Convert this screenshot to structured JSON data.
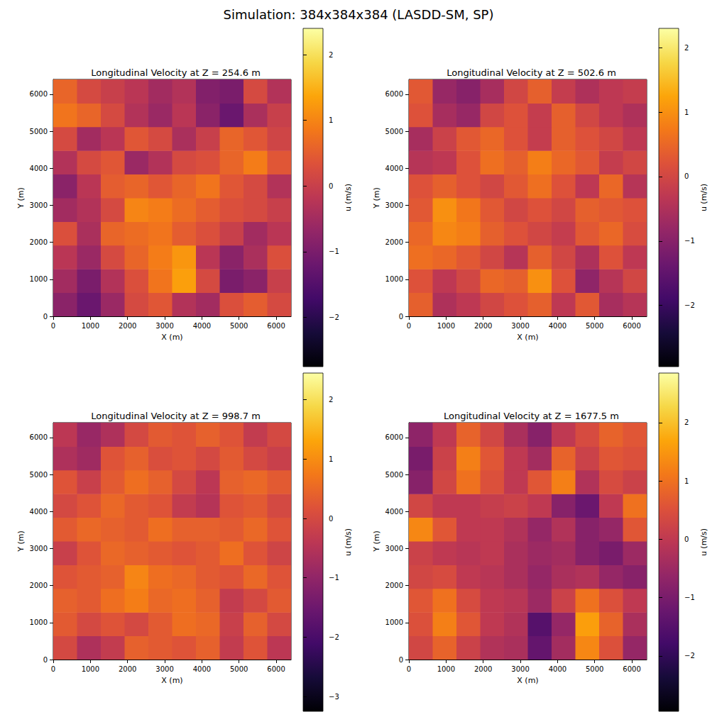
{
  "title": "Simulation: 384x384x384 (LASDD-SM, SP)",
  "chart_data": [
    {
      "type": "heatmap",
      "title": "Longitudinal Velocity at Z = 254.6 m",
      "x_label": "X (m)",
      "y_label": "Y (m)",
      "xlim": [
        0,
        6400
      ],
      "ylim": [
        0,
        6400
      ],
      "xticks": [
        0,
        1000,
        2000,
        3000,
        4000,
        5000,
        6000
      ],
      "yticks": [
        0,
        1000,
        2000,
        3000,
        4000,
        5000,
        6000
      ],
      "x_bins": [
        0,
        640,
        1280,
        1920,
        2560,
        3200,
        3840,
        4480,
        5120,
        5760,
        6400
      ],
      "y_bins": [
        0,
        640,
        1280,
        1920,
        2560,
        3200,
        3840,
        4480,
        5120,
        5760,
        6400
      ],
      "cells": [
        [
          -0.8,
          -1.2,
          -0.6,
          0.2,
          0.4,
          -0.3,
          -0.5,
          0.3,
          0.5,
          0.2
        ],
        [
          -0.5,
          -1.0,
          -0.3,
          0.3,
          0.8,
          1.3,
          0.2,
          -1.0,
          -0.8,
          0.0
        ],
        [
          -0.2,
          -0.6,
          0.2,
          0.6,
          0.9,
          1.2,
          -0.2,
          -0.8,
          -0.4,
          0.3
        ],
        [
          0.3,
          -0.4,
          0.6,
          0.7,
          0.8,
          0.5,
          0.3,
          0.0,
          -0.5,
          -0.2
        ],
        [
          -0.5,
          -0.3,
          0.2,
          1.0,
          0.9,
          0.7,
          0.5,
          0.3,
          0.2,
          0.0
        ],
        [
          -0.8,
          -0.2,
          0.5,
          0.6,
          0.4,
          0.6,
          0.8,
          0.4,
          0.2,
          -0.3
        ],
        [
          -0.3,
          0.2,
          0.4,
          -0.6,
          -0.3,
          0.2,
          0.3,
          0.6,
          0.9,
          0.4
        ],
        [
          0.2,
          -0.5,
          -0.2,
          0.4,
          0.2,
          -0.4,
          0.0,
          0.6,
          0.4,
          0.1
        ],
        [
          0.8,
          0.6,
          0.2,
          -0.3,
          -0.6,
          -0.2,
          -0.8,
          -1.2,
          -0.4,
          0.0
        ],
        [
          0.6,
          0.2,
          0.0,
          -0.2,
          -0.5,
          -0.3,
          -0.9,
          -1.0,
          0.2,
          -0.3
        ]
      ],
      "colorbar": {
        "label": "u (m/s)",
        "range": [
          -2.75,
          2.4
        ],
        "ticks": [
          {
            "value": -2,
            "label": "−2"
          },
          {
            "value": -1,
            "label": "−1"
          },
          0,
          1,
          2
        ]
      }
    },
    {
      "type": "heatmap",
      "title": "Longitudinal Velocity at Z = 502.6 m",
      "x_label": "X (m)",
      "y_label": "Y (m)",
      "xlim": [
        0,
        6400
      ],
      "ylim": [
        0,
        6400
      ],
      "xticks": [
        0,
        1000,
        2000,
        3000,
        4000,
        5000,
        6000
      ],
      "yticks": [
        0,
        1000,
        2000,
        3000,
        4000,
        5000,
        6000
      ],
      "x_bins": [
        0,
        640,
        1280,
        1920,
        2560,
        3200,
        3840,
        4480,
        5120,
        5760,
        6400
      ],
      "y_bins": [
        0,
        640,
        1280,
        1920,
        2560,
        3200,
        3840,
        4480,
        5120,
        5760,
        6400
      ],
      "cells": [
        [
          0.4,
          -0.5,
          -0.3,
          0.0,
          0.2,
          0.4,
          -0.3,
          0.3,
          -0.6,
          -0.4
        ],
        [
          0.2,
          -0.3,
          0.0,
          0.5,
          0.4,
          1.0,
          0.2,
          -0.9,
          -0.4,
          0.0
        ],
        [
          0.6,
          0.5,
          0.3,
          0.0,
          -0.4,
          0.4,
          0.0,
          -0.5,
          0.2,
          -0.3
        ],
        [
          0.5,
          0.9,
          0.8,
          0.4,
          0.2,
          0.0,
          -0.2,
          0.3,
          0.5,
          0.1
        ],
        [
          0.3,
          1.0,
          0.7,
          0.3,
          0.0,
          0.2,
          0.0,
          0.4,
          0.3,
          0.2
        ],
        [
          0.2,
          0.4,
          0.2,
          0.0,
          0.3,
          0.6,
          0.2,
          -0.3,
          0.5,
          -0.4
        ],
        [
          -0.4,
          -0.3,
          0.2,
          0.6,
          0.4,
          0.8,
          0.5,
          0.3,
          -0.2,
          0.0
        ],
        [
          -0.6,
          -0.1,
          0.3,
          0.5,
          0.2,
          -0.2,
          0.4,
          0.2,
          0.0,
          -0.3
        ],
        [
          0.2,
          -0.6,
          -0.8,
          0.0,
          0.2,
          -0.2,
          0.4,
          0.0,
          -0.3,
          -0.5
        ],
        [
          0.3,
          -0.8,
          -1.0,
          -0.6,
          0.0,
          0.4,
          -0.2,
          -0.5,
          -0.3,
          -0.2
        ]
      ],
      "colorbar": {
        "label": "u (m/s)",
        "range": [
          -2.95,
          2.3
        ],
        "ticks": [
          {
            "value": -2,
            "label": "−2"
          },
          {
            "value": -1,
            "label": "−1"
          },
          0,
          1,
          2
        ]
      }
    },
    {
      "type": "heatmap",
      "title": "Longitudinal Velocity at Z = 998.7 m",
      "x_label": "X (m)",
      "y_label": "Y (m)",
      "xlim": [
        0,
        6400
      ],
      "ylim": [
        0,
        6400
      ],
      "xticks": [
        0,
        1000,
        2000,
        3000,
        4000,
        5000,
        6000
      ],
      "yticks": [
        0,
        1000,
        2000,
        3000,
        4000,
        5000,
        6000
      ],
      "x_bins": [
        0,
        640,
        1280,
        1920,
        2560,
        3200,
        3840,
        4480,
        5120,
        5760,
        6400
      ],
      "y_bins": [
        0,
        640,
        1280,
        1920,
        2560,
        3200,
        3840,
        4480,
        5120,
        5760,
        6400
      ],
      "cells": [
        [
          0.0,
          -0.6,
          -0.3,
          0.4,
          0.3,
          0.2,
          0.4,
          -0.3,
          0.2,
          -0.4
        ],
        [
          0.3,
          0.0,
          0.2,
          0.0,
          0.3,
          0.6,
          0.5,
          -0.2,
          0.4,
          0.0
        ],
        [
          0.4,
          0.3,
          0.6,
          0.8,
          0.5,
          0.6,
          0.4,
          -0.3,
          0.0,
          0.3
        ],
        [
          0.2,
          0.3,
          0.4,
          0.9,
          0.6,
          0.5,
          0.3,
          0.2,
          0.5,
          0.2
        ],
        [
          -0.2,
          0.2,
          0.5,
          0.4,
          0.3,
          0.2,
          0.3,
          0.6,
          0.2,
          -0.1
        ],
        [
          0.3,
          0.5,
          0.4,
          0.3,
          0.6,
          0.4,
          0.4,
          0.3,
          0.5,
          0.2
        ],
        [
          0.0,
          0.2,
          0.5,
          0.3,
          0.2,
          -0.3,
          -0.5,
          0.2,
          0.3,
          0.0
        ],
        [
          0.2,
          -0.2,
          0.3,
          0.6,
          0.4,
          0.0,
          -0.4,
          0.4,
          0.5,
          0.3
        ],
        [
          -0.6,
          -0.8,
          0.2,
          0.4,
          0.1,
          0.2,
          0.0,
          0.3,
          0.0,
          -0.2
        ],
        [
          -0.4,
          -0.9,
          -0.6,
          0.0,
          0.3,
          0.2,
          0.4,
          0.2,
          -0.3,
          0.0
        ]
      ],
      "colorbar": {
        "label": "u (m/s)",
        "range": [
          -3.25,
          2.45
        ],
        "ticks": [
          {
            "value": -3,
            "label": "−3"
          },
          {
            "value": -2,
            "label": "−2"
          },
          {
            "value": -1,
            "label": "−1"
          },
          0,
          1,
          2
        ]
      }
    },
    {
      "type": "heatmap",
      "title": "Longitudinal Velocity at Z = 1677.5 m",
      "x_label": "X (m)",
      "y_label": "Y (m)",
      "xlim": [
        0,
        6400
      ],
      "ylim": [
        0,
        6400
      ],
      "xticks": [
        0,
        1000,
        2000,
        3000,
        4000,
        5000,
        6000
      ],
      "yticks": [
        0,
        1000,
        2000,
        3000,
        4000,
        5000,
        6000
      ],
      "x_bins": [
        0,
        640,
        1280,
        1920,
        2560,
        3200,
        3840,
        4480,
        5120,
        5760,
        6400
      ],
      "y_bins": [
        0,
        640,
        1280,
        1920,
        2560,
        3200,
        3840,
        4480,
        5120,
        5760,
        6400
      ],
      "cells": [
        [
          0.3,
          0.8,
          0.2,
          -0.2,
          -0.3,
          -1.3,
          -0.4,
          1.3,
          0.5,
          -0.6
        ],
        [
          0.5,
          1.2,
          0.6,
          0.0,
          -0.2,
          -1.5,
          -0.6,
          1.6,
          0.8,
          -0.3
        ],
        [
          0.6,
          1.0,
          0.4,
          0.0,
          -0.1,
          -0.5,
          0.2,
          1.0,
          0.5,
          0.0
        ],
        [
          0.3,
          0.4,
          0.0,
          -0.1,
          -0.3,
          -0.6,
          -0.3,
          -0.2,
          -0.6,
          -0.8
        ],
        [
          0.2,
          0.0,
          -0.1,
          0.0,
          -0.3,
          -0.5,
          -0.4,
          -0.8,
          -1.0,
          -0.5
        ],
        [
          1.3,
          0.6,
          0.0,
          0.0,
          -0.2,
          -0.6,
          -0.2,
          -0.8,
          -0.6,
          0.6
        ],
        [
          0.3,
          0.0,
          0.0,
          0.1,
          0.2,
          0.0,
          -0.8,
          -1.2,
          0.0,
          1.0
        ],
        [
          -0.8,
          0.3,
          1.0,
          0.5,
          0.0,
          0.6,
          1.2,
          -0.2,
          0.4,
          0.2
        ],
        [
          -1.0,
          0.2,
          1.2,
          0.6,
          0.0,
          -0.4,
          0.8,
          0.2,
          0.6,
          0.5
        ],
        [
          -0.7,
          0.0,
          0.8,
          0.3,
          -0.3,
          -0.8,
          0.0,
          0.4,
          0.8,
          0.6
        ]
      ],
      "colorbar": {
        "label": "u (m/s)",
        "range": [
          -2.95,
          2.85
        ],
        "ticks": [
          {
            "value": -2,
            "label": "−2"
          },
          {
            "value": -1,
            "label": "−1"
          },
          0,
          1,
          2
        ]
      }
    }
  ]
}
